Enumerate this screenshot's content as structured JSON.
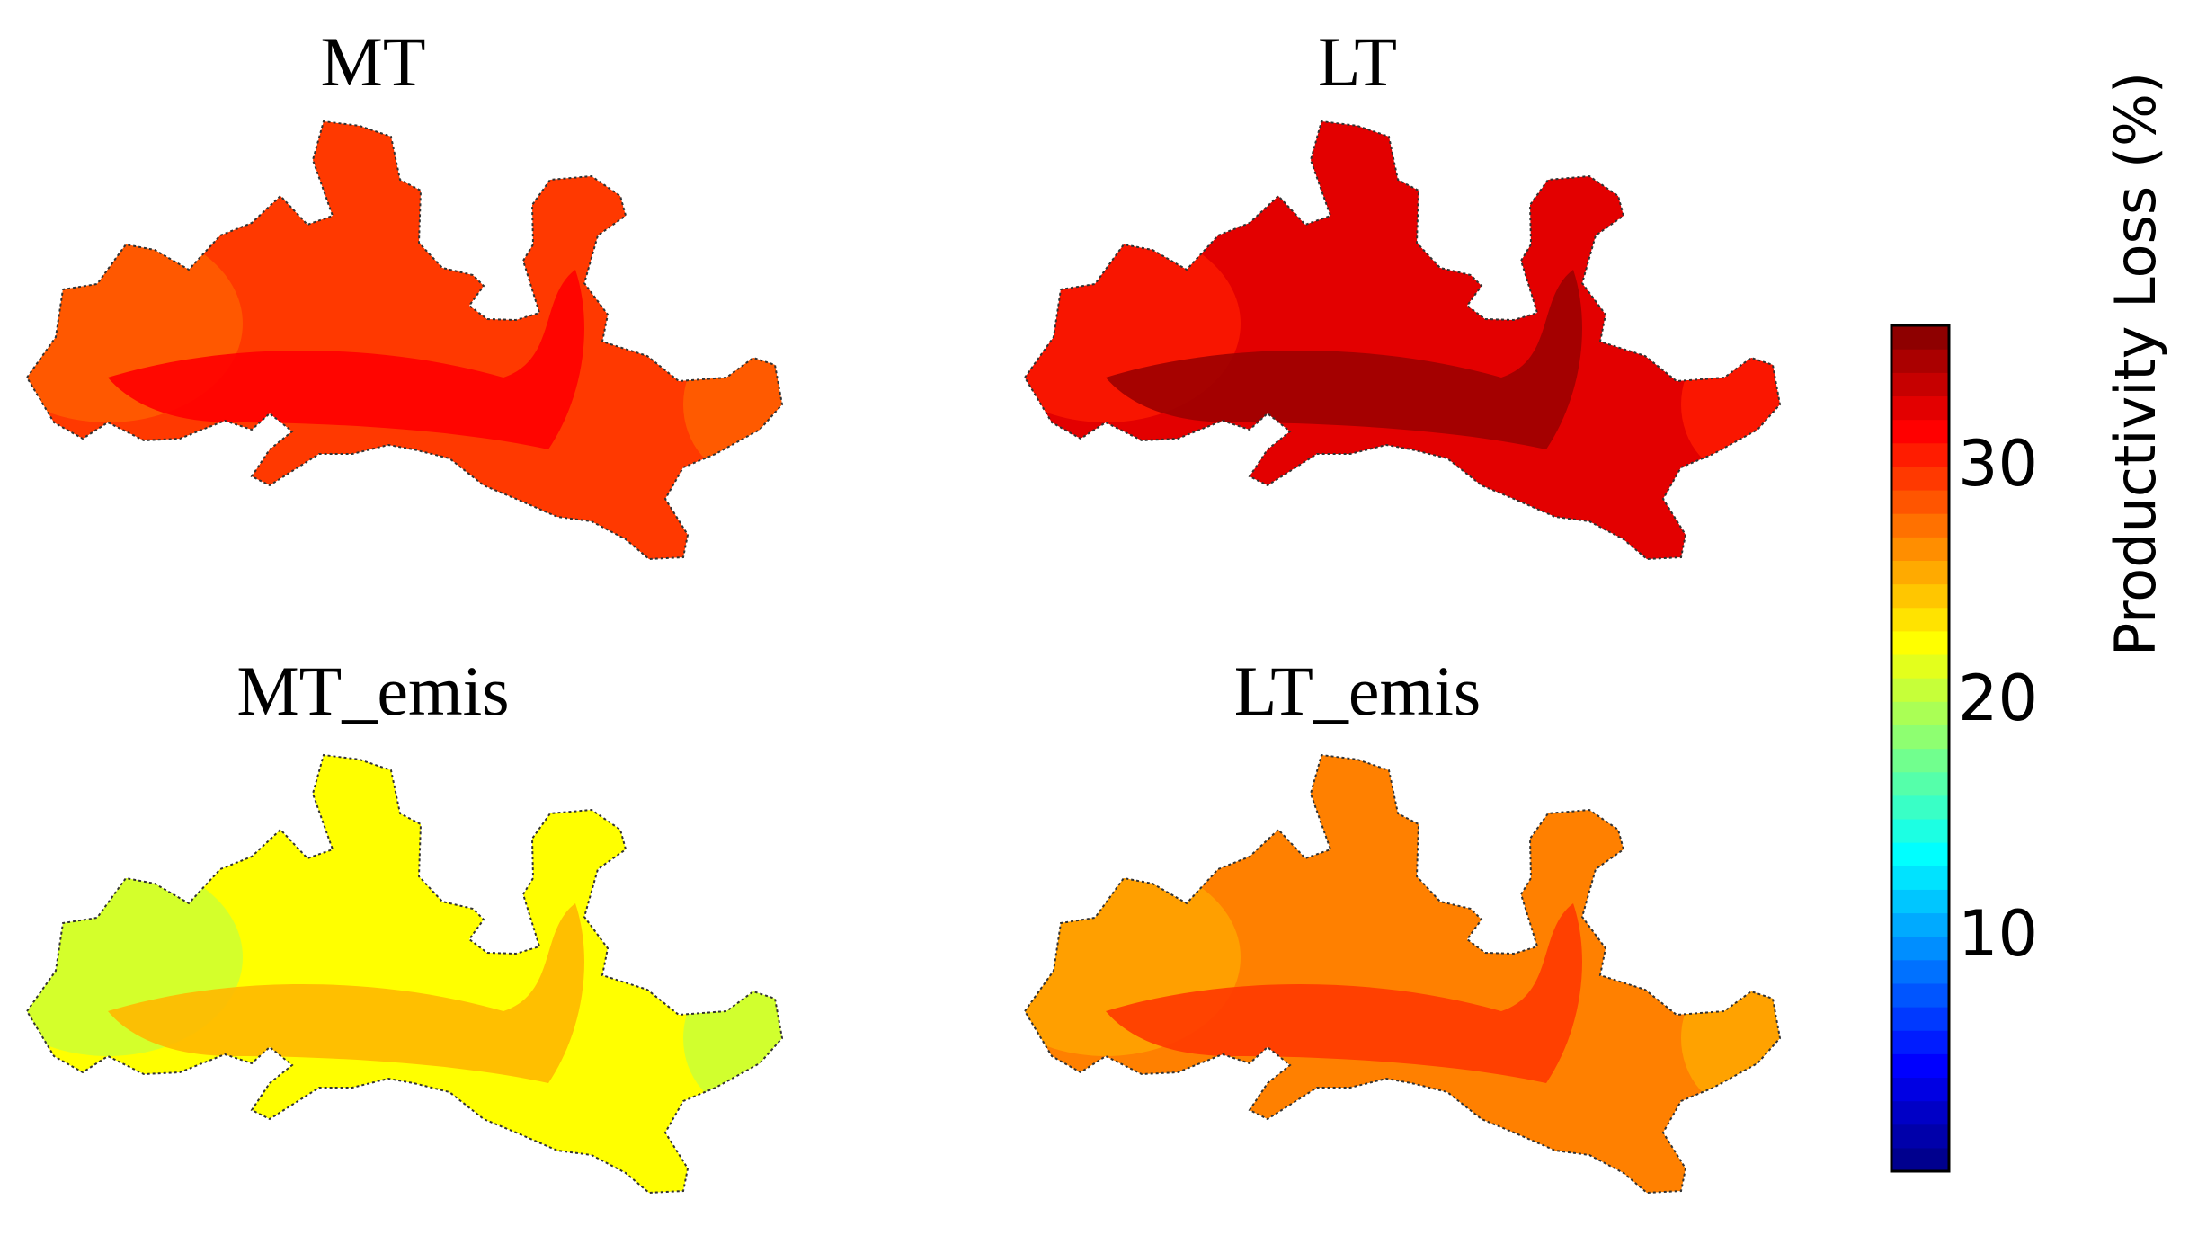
{
  "panels": [
    {
      "title": "MT",
      "value_base": 29.5,
      "value_core": 31.5,
      "value_edge": 28.0
    },
    {
      "title": "LT",
      "value_base": 32.5,
      "value_core": 35.0,
      "value_edge": 30.5
    },
    {
      "title": "MT_emis",
      "value_base": 22.5,
      "value_core": 25.0,
      "value_edge": 20.5
    },
    {
      "title": "LT_emis",
      "value_base": 27.0,
      "value_core": 29.5,
      "value_edge": 25.5
    }
  ],
  "colorbar": {
    "label": "Productivity Loss (%)",
    "min": 0,
    "max": 36,
    "ticks": [
      "10",
      "20",
      "30"
    ],
    "colormap": "jet",
    "colors": [
      "#00007f",
      "#0000ff",
      "#007fff",
      "#00ffff",
      "#7fff7f",
      "#ffff00",
      "#ff7f00",
      "#ff0000",
      "#7f0000"
    ]
  }
}
